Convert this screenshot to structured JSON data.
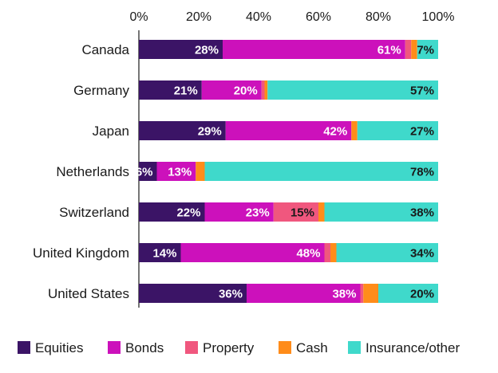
{
  "chart_data": {
    "type": "bar",
    "orientation": "horizontal",
    "stacked": true,
    "percent_stacked": true,
    "xlim": [
      0,
      100
    ],
    "x_ticks": [
      "0%",
      "20%",
      "40%",
      "60%",
      "80%",
      "100%"
    ],
    "tick_position": "top",
    "legend_position": "bottom",
    "categories": [
      "Canada",
      "Germany",
      "Japan",
      "Netherlands",
      "Switzerland",
      "United Kingdom",
      "United States"
    ],
    "series": [
      {
        "name": "Equities",
        "color": "#3b1466",
        "values": [
          28,
          21,
          29,
          6,
          22,
          14,
          36
        ],
        "labels": [
          "28%",
          "21%",
          "29%",
          "6%",
          "22%",
          "14%",
          "36%"
        ]
      },
      {
        "name": "Bonds",
        "color": "#cc11bb",
        "values": [
          61,
          20,
          42,
          13,
          23,
          48,
          38
        ],
        "labels": [
          "61%",
          "20%",
          "42%",
          "13%",
          "23%",
          "48%",
          "38%"
        ]
      },
      {
        "name": "Property",
        "color": "#f0577e",
        "values": [
          2,
          1,
          0,
          0,
          15,
          2,
          1
        ],
        "labels": [
          "",
          "",
          "",
          "",
          "15%",
          "",
          ""
        ]
      },
      {
        "name": "Cash",
        "color": "#ff8c1a",
        "values": [
          2,
          1,
          2,
          3,
          2,
          2,
          5
        ],
        "labels": [
          "",
          "",
          "",
          "",
          "",
          "",
          ""
        ]
      },
      {
        "name": "Insurance/other",
        "color": "#3fd9cb",
        "values": [
          7,
          57,
          27,
          78,
          38,
          34,
          20
        ],
        "labels": [
          "7%",
          "57%",
          "27%",
          "78%",
          "38%",
          "34%",
          "20%"
        ]
      }
    ]
  }
}
